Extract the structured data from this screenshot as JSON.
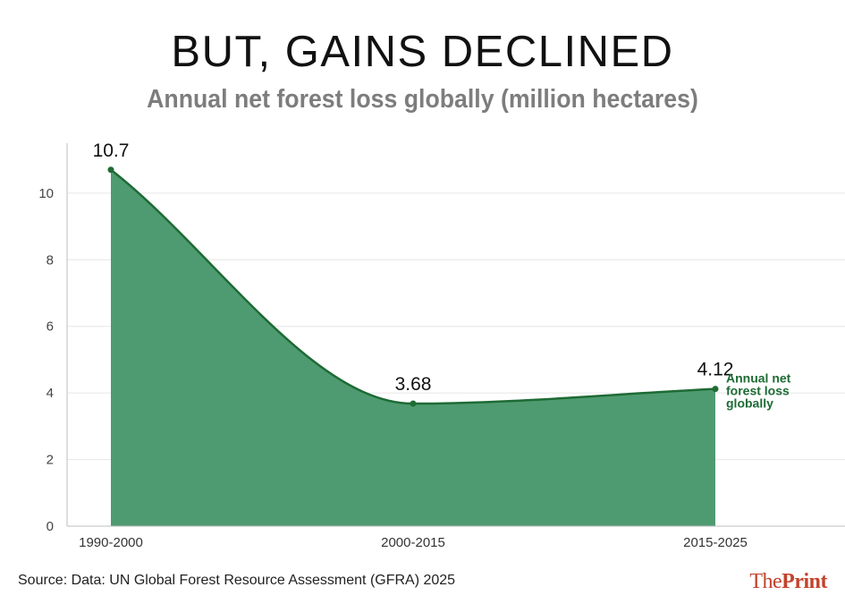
{
  "title": "BUT, GAINS DECLINED",
  "subtitle": "Annual net forest loss globally (million hectares)",
  "source": "Source: Data: UN Global Forest Resource Assessment (GFRA) 2025",
  "logo": {
    "part1": "The",
    "part2": "Print"
  },
  "colors": {
    "fill": "#4f9b71",
    "line": "#1e6b35",
    "grid": "#e6e6e6",
    "axis": "#bdbdbd",
    "logo": "#c2432b"
  },
  "chart_data": {
    "type": "area",
    "title": "BUT, GAINS DECLINED",
    "subtitle": "Annual net forest loss globally (million hectares)",
    "categories": [
      "1990-2000",
      "2000-2015",
      "2015-2025"
    ],
    "series": [
      {
        "name": "Annual net forest loss globally",
        "values": [
          10.7,
          3.68,
          4.12
        ],
        "data_labels": [
          "10.7",
          "3.68",
          "4.12"
        ]
      }
    ],
    "series_label_lines": [
      "Annual net",
      "forest loss",
      "globally"
    ],
    "yticks": [
      0,
      2,
      4,
      6,
      8,
      10
    ],
    "ylim": [
      0,
      11.5
    ],
    "xlabel": "",
    "ylabel": "",
    "grid": true
  }
}
